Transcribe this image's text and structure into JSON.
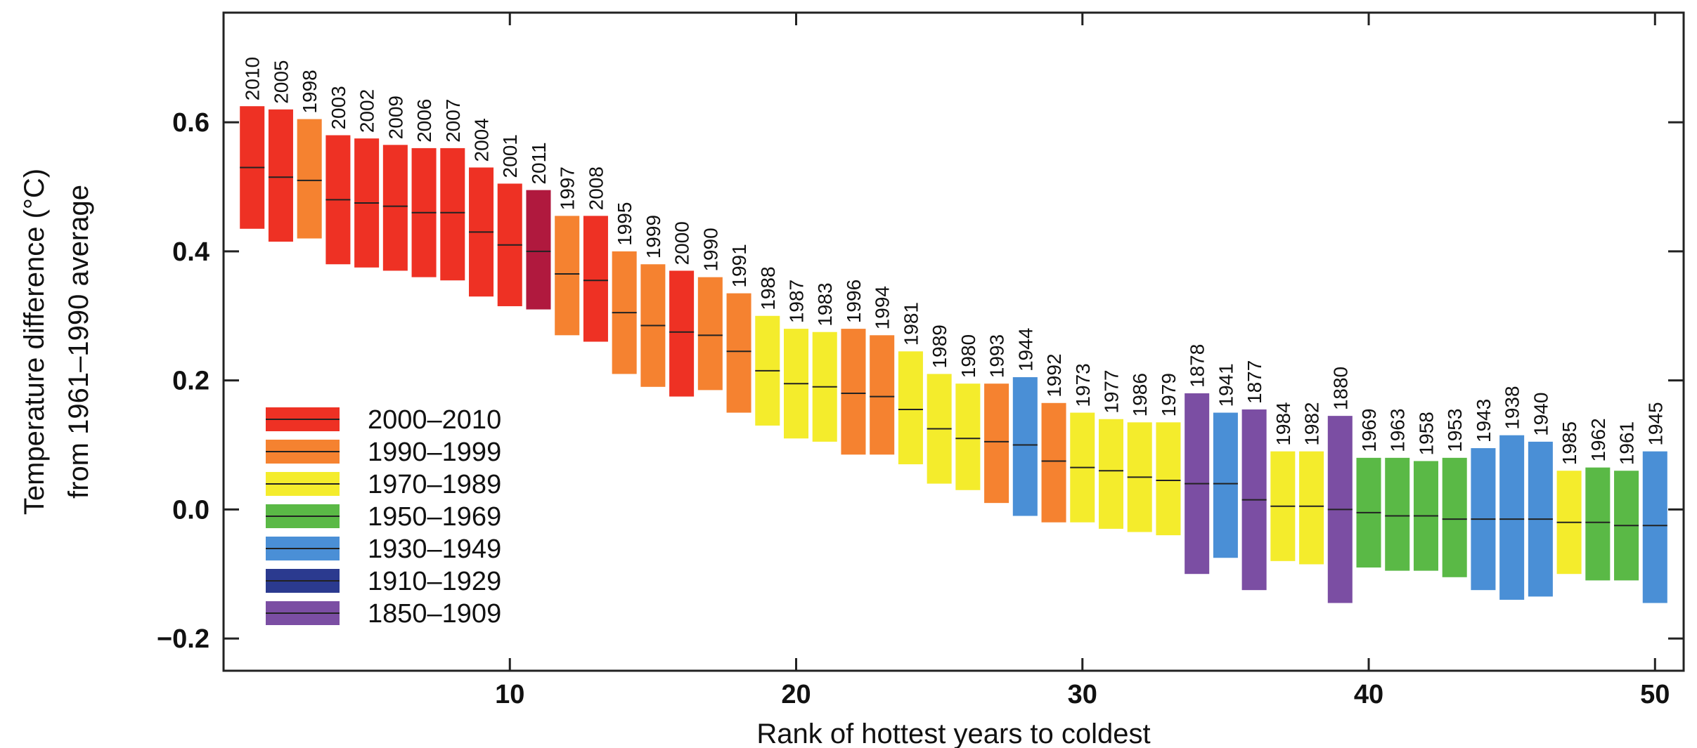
{
  "chart_data": {
    "type": "bar",
    "subtype": "floating-range-with-median",
    "title": "",
    "xlabel": "Rank of hottest years to coldest",
    "ylabel_line1": "Temperature difference (°C)",
    "ylabel_line2": "from 1961–1990 average",
    "xlim": [
      0,
      51
    ],
    "ylim": [
      -0.25,
      0.77
    ],
    "xticks": [
      10,
      20,
      30,
      40,
      50
    ],
    "xtick_labels": [
      "10",
      "20",
      "30",
      "40",
      "50"
    ],
    "yticks": [
      -0.2,
      0.0,
      0.2,
      0.4,
      0.6
    ],
    "ytick_labels": [
      "−0.2",
      "0.0",
      "0.2",
      "0.4",
      "0.6"
    ],
    "grid": false,
    "legend_position": "bottom-left",
    "period_colors": {
      "2000–2010": "#ee3124",
      "1990–1999": "#f58230",
      "1970–1989": "#f4ec2c",
      "1950–1969": "#5ab946",
      "1930–1949": "#4a8fd6",
      "1910–1929": "#2b3a8f",
      "1850–1909": "#7b4ea3",
      "2011": "#b0193e"
    },
    "legend": [
      {
        "label": "2000–2010",
        "color": "#ee3124"
      },
      {
        "label": "1990–1999",
        "color": "#f58230"
      },
      {
        "label": "1970–1989",
        "color": "#f4ec2c"
      },
      {
        "label": "1950–1969",
        "color": "#5ab946"
      },
      {
        "label": "1930–1949",
        "color": "#4a8fd6"
      },
      {
        "label": "1910–1929",
        "color": "#2b3a8f"
      },
      {
        "label": "1850–1909",
        "color": "#7b4ea3"
      }
    ],
    "years": [
      {
        "rank": 1,
        "year": "2010",
        "period": "2000–2010",
        "low": 0.435,
        "median": 0.53,
        "high": 0.625
      },
      {
        "rank": 2,
        "year": "2005",
        "period": "2000–2010",
        "low": 0.415,
        "median": 0.515,
        "high": 0.62
      },
      {
        "rank": 3,
        "year": "1998",
        "period": "1990–1999",
        "low": 0.42,
        "median": 0.51,
        "high": 0.605
      },
      {
        "rank": 4,
        "year": "2003",
        "period": "2000–2010",
        "low": 0.38,
        "median": 0.48,
        "high": 0.58
      },
      {
        "rank": 5,
        "year": "2002",
        "period": "2000–2010",
        "low": 0.375,
        "median": 0.475,
        "high": 0.575
      },
      {
        "rank": 6,
        "year": "2009",
        "period": "2000–2010",
        "low": 0.37,
        "median": 0.47,
        "high": 0.565
      },
      {
        "rank": 7,
        "year": "2006",
        "period": "2000–2010",
        "low": 0.36,
        "median": 0.46,
        "high": 0.56
      },
      {
        "rank": 8,
        "year": "2007",
        "period": "2000–2010",
        "low": 0.355,
        "median": 0.46,
        "high": 0.56
      },
      {
        "rank": 9,
        "year": "2004",
        "period": "2000–2010",
        "low": 0.33,
        "median": 0.43,
        "high": 0.53
      },
      {
        "rank": 10,
        "year": "2001",
        "period": "2000–2010",
        "low": 0.315,
        "median": 0.41,
        "high": 0.505
      },
      {
        "rank": 11,
        "year": "2011",
        "period": "2011",
        "low": 0.31,
        "median": 0.4,
        "high": 0.495
      },
      {
        "rank": 12,
        "year": "1997",
        "period": "1990–1999",
        "low": 0.27,
        "median": 0.365,
        "high": 0.455
      },
      {
        "rank": 13,
        "year": "2008",
        "period": "2000–2010",
        "low": 0.26,
        "median": 0.355,
        "high": 0.455
      },
      {
        "rank": 14,
        "year": "1995",
        "period": "1990–1999",
        "low": 0.21,
        "median": 0.305,
        "high": 0.4
      },
      {
        "rank": 15,
        "year": "1999",
        "period": "1990–1999",
        "low": 0.19,
        "median": 0.285,
        "high": 0.38
      },
      {
        "rank": 16,
        "year": "2000",
        "period": "2000–2010",
        "low": 0.175,
        "median": 0.275,
        "high": 0.37
      },
      {
        "rank": 17,
        "year": "1990",
        "period": "1990–1999",
        "low": 0.185,
        "median": 0.27,
        "high": 0.36
      },
      {
        "rank": 18,
        "year": "1991",
        "period": "1990–1999",
        "low": 0.15,
        "median": 0.245,
        "high": 0.335
      },
      {
        "rank": 19,
        "year": "1988",
        "period": "1970–1989",
        "low": 0.13,
        "median": 0.215,
        "high": 0.3
      },
      {
        "rank": 20,
        "year": "1987",
        "period": "1970–1989",
        "low": 0.11,
        "median": 0.195,
        "high": 0.28
      },
      {
        "rank": 21,
        "year": "1983",
        "period": "1970–1989",
        "low": 0.105,
        "median": 0.19,
        "high": 0.275
      },
      {
        "rank": 22,
        "year": "1996",
        "period": "1990–1999",
        "low": 0.085,
        "median": 0.18,
        "high": 0.28
      },
      {
        "rank": 23,
        "year": "1994",
        "period": "1990–1999",
        "low": 0.085,
        "median": 0.175,
        "high": 0.27
      },
      {
        "rank": 24,
        "year": "1981",
        "period": "1970–1989",
        "low": 0.07,
        "median": 0.155,
        "high": 0.245
      },
      {
        "rank": 25,
        "year": "1989",
        "period": "1970–1989",
        "low": 0.04,
        "median": 0.125,
        "high": 0.21
      },
      {
        "rank": 26,
        "year": "1980",
        "period": "1970–1989",
        "low": 0.03,
        "median": 0.11,
        "high": 0.195
      },
      {
        "rank": 27,
        "year": "1993",
        "period": "1990–1999",
        "low": 0.01,
        "median": 0.105,
        "high": 0.195
      },
      {
        "rank": 28,
        "year": "1944",
        "period": "1930–1949",
        "low": -0.01,
        "median": 0.1,
        "high": 0.205
      },
      {
        "rank": 29,
        "year": "1992",
        "period": "1990–1999",
        "low": -0.02,
        "median": 0.075,
        "high": 0.165
      },
      {
        "rank": 30,
        "year": "1973",
        "period": "1970–1989",
        "low": -0.02,
        "median": 0.065,
        "high": 0.15
      },
      {
        "rank": 31,
        "year": "1977",
        "period": "1970–1989",
        "low": -0.03,
        "median": 0.06,
        "high": 0.14
      },
      {
        "rank": 32,
        "year": "1986",
        "period": "1970–1989",
        "low": -0.035,
        "median": 0.05,
        "high": 0.135
      },
      {
        "rank": 33,
        "year": "1979",
        "period": "1970–1989",
        "low": -0.04,
        "median": 0.045,
        "high": 0.135
      },
      {
        "rank": 34,
        "year": "1878",
        "period": "1850–1909",
        "low": -0.1,
        "median": 0.04,
        "high": 0.18
      },
      {
        "rank": 35,
        "year": "1941",
        "period": "1930–1949",
        "low": -0.075,
        "median": 0.04,
        "high": 0.15
      },
      {
        "rank": 36,
        "year": "1877",
        "period": "1850–1909",
        "low": -0.125,
        "median": 0.015,
        "high": 0.155
      },
      {
        "rank": 37,
        "year": "1984",
        "period": "1970–1989",
        "low": -0.08,
        "median": 0.005,
        "high": 0.09
      },
      {
        "rank": 38,
        "year": "1982",
        "period": "1970–1989",
        "low": -0.085,
        "median": 0.005,
        "high": 0.09
      },
      {
        "rank": 39,
        "year": "1880",
        "period": "1850–1909",
        "low": -0.145,
        "median": 0.0,
        "high": 0.145
      },
      {
        "rank": 40,
        "year": "1969",
        "period": "1950–1969",
        "low": -0.09,
        "median": -0.005,
        "high": 0.08
      },
      {
        "rank": 41,
        "year": "1963",
        "period": "1950–1969",
        "low": -0.095,
        "median": -0.01,
        "high": 0.08
      },
      {
        "rank": 42,
        "year": "1958",
        "period": "1950–1969",
        "low": -0.095,
        "median": -0.01,
        "high": 0.075
      },
      {
        "rank": 43,
        "year": "1953",
        "period": "1950–1969",
        "low": -0.105,
        "median": -0.015,
        "high": 0.08
      },
      {
        "rank": 44,
        "year": "1943",
        "period": "1930–1949",
        "low": -0.125,
        "median": -0.015,
        "high": 0.095
      },
      {
        "rank": 45,
        "year": "1938",
        "period": "1930–1949",
        "low": -0.14,
        "median": -0.015,
        "high": 0.115
      },
      {
        "rank": 46,
        "year": "1940",
        "period": "1930–1949",
        "low": -0.135,
        "median": -0.015,
        "high": 0.105
      },
      {
        "rank": 47,
        "year": "1985",
        "period": "1970–1989",
        "low": -0.1,
        "median": -0.02,
        "high": 0.06
      },
      {
        "rank": 48,
        "year": "1962",
        "period": "1950–1969",
        "low": -0.11,
        "median": -0.02,
        "high": 0.065
      },
      {
        "rank": 49,
        "year": "1961",
        "period": "1950–1969",
        "low": -0.11,
        "median": -0.025,
        "high": 0.06
      },
      {
        "rank": 50,
        "year": "1945",
        "period": "1930–1949",
        "low": -0.145,
        "median": -0.025,
        "high": 0.09
      }
    ]
  }
}
